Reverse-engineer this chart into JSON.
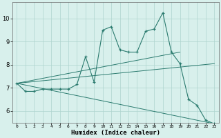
{
  "xlabel": "Humidex (Indice chaleur)",
  "x": [
    0,
    1,
    2,
    3,
    4,
    5,
    6,
    7,
    8,
    9,
    10,
    11,
    12,
    13,
    14,
    15,
    16,
    17,
    18,
    19,
    20,
    21,
    22,
    23
  ],
  "y_main": [
    7.2,
    6.85,
    6.85,
    6.95,
    6.95,
    6.95,
    6.95,
    7.15,
    8.35,
    7.25,
    9.5,
    9.65,
    8.65,
    8.55,
    8.55,
    9.45,
    9.55,
    10.25,
    8.55,
    8.05,
    6.5,
    6.25,
    5.6,
    5.45
  ],
  "regression_lines": [
    {
      "x": [
        0,
        19
      ],
      "y": [
        7.2,
        8.55
      ]
    },
    {
      "x": [
        0,
        23
      ],
      "y": [
        7.2,
        8.05
      ]
    },
    {
      "x": [
        0,
        23
      ],
      "y": [
        7.2,
        5.45
      ]
    }
  ],
  "line_color": "#2a7a6e",
  "bg_color": "#d8f0ec",
  "grid_color": "#aed4ce",
  "ylim": [
    5.5,
    10.7
  ],
  "xlim": [
    -0.5,
    23.5
  ],
  "yticks": [
    6,
    7,
    8,
    9,
    10
  ],
  "xticks": [
    0,
    1,
    2,
    3,
    4,
    5,
    6,
    7,
    8,
    9,
    10,
    11,
    12,
    13,
    14,
    15,
    16,
    17,
    18,
    19,
    20,
    21,
    22,
    23
  ],
  "xtick_labels": [
    "0",
    "1",
    "2",
    "3",
    "4",
    "5",
    "6",
    "7",
    "8",
    "9",
    "10",
    "11",
    "12",
    "13",
    "14",
    "15",
    "16",
    "17",
    "18",
    "19",
    "20",
    "21",
    "22",
    "23"
  ]
}
